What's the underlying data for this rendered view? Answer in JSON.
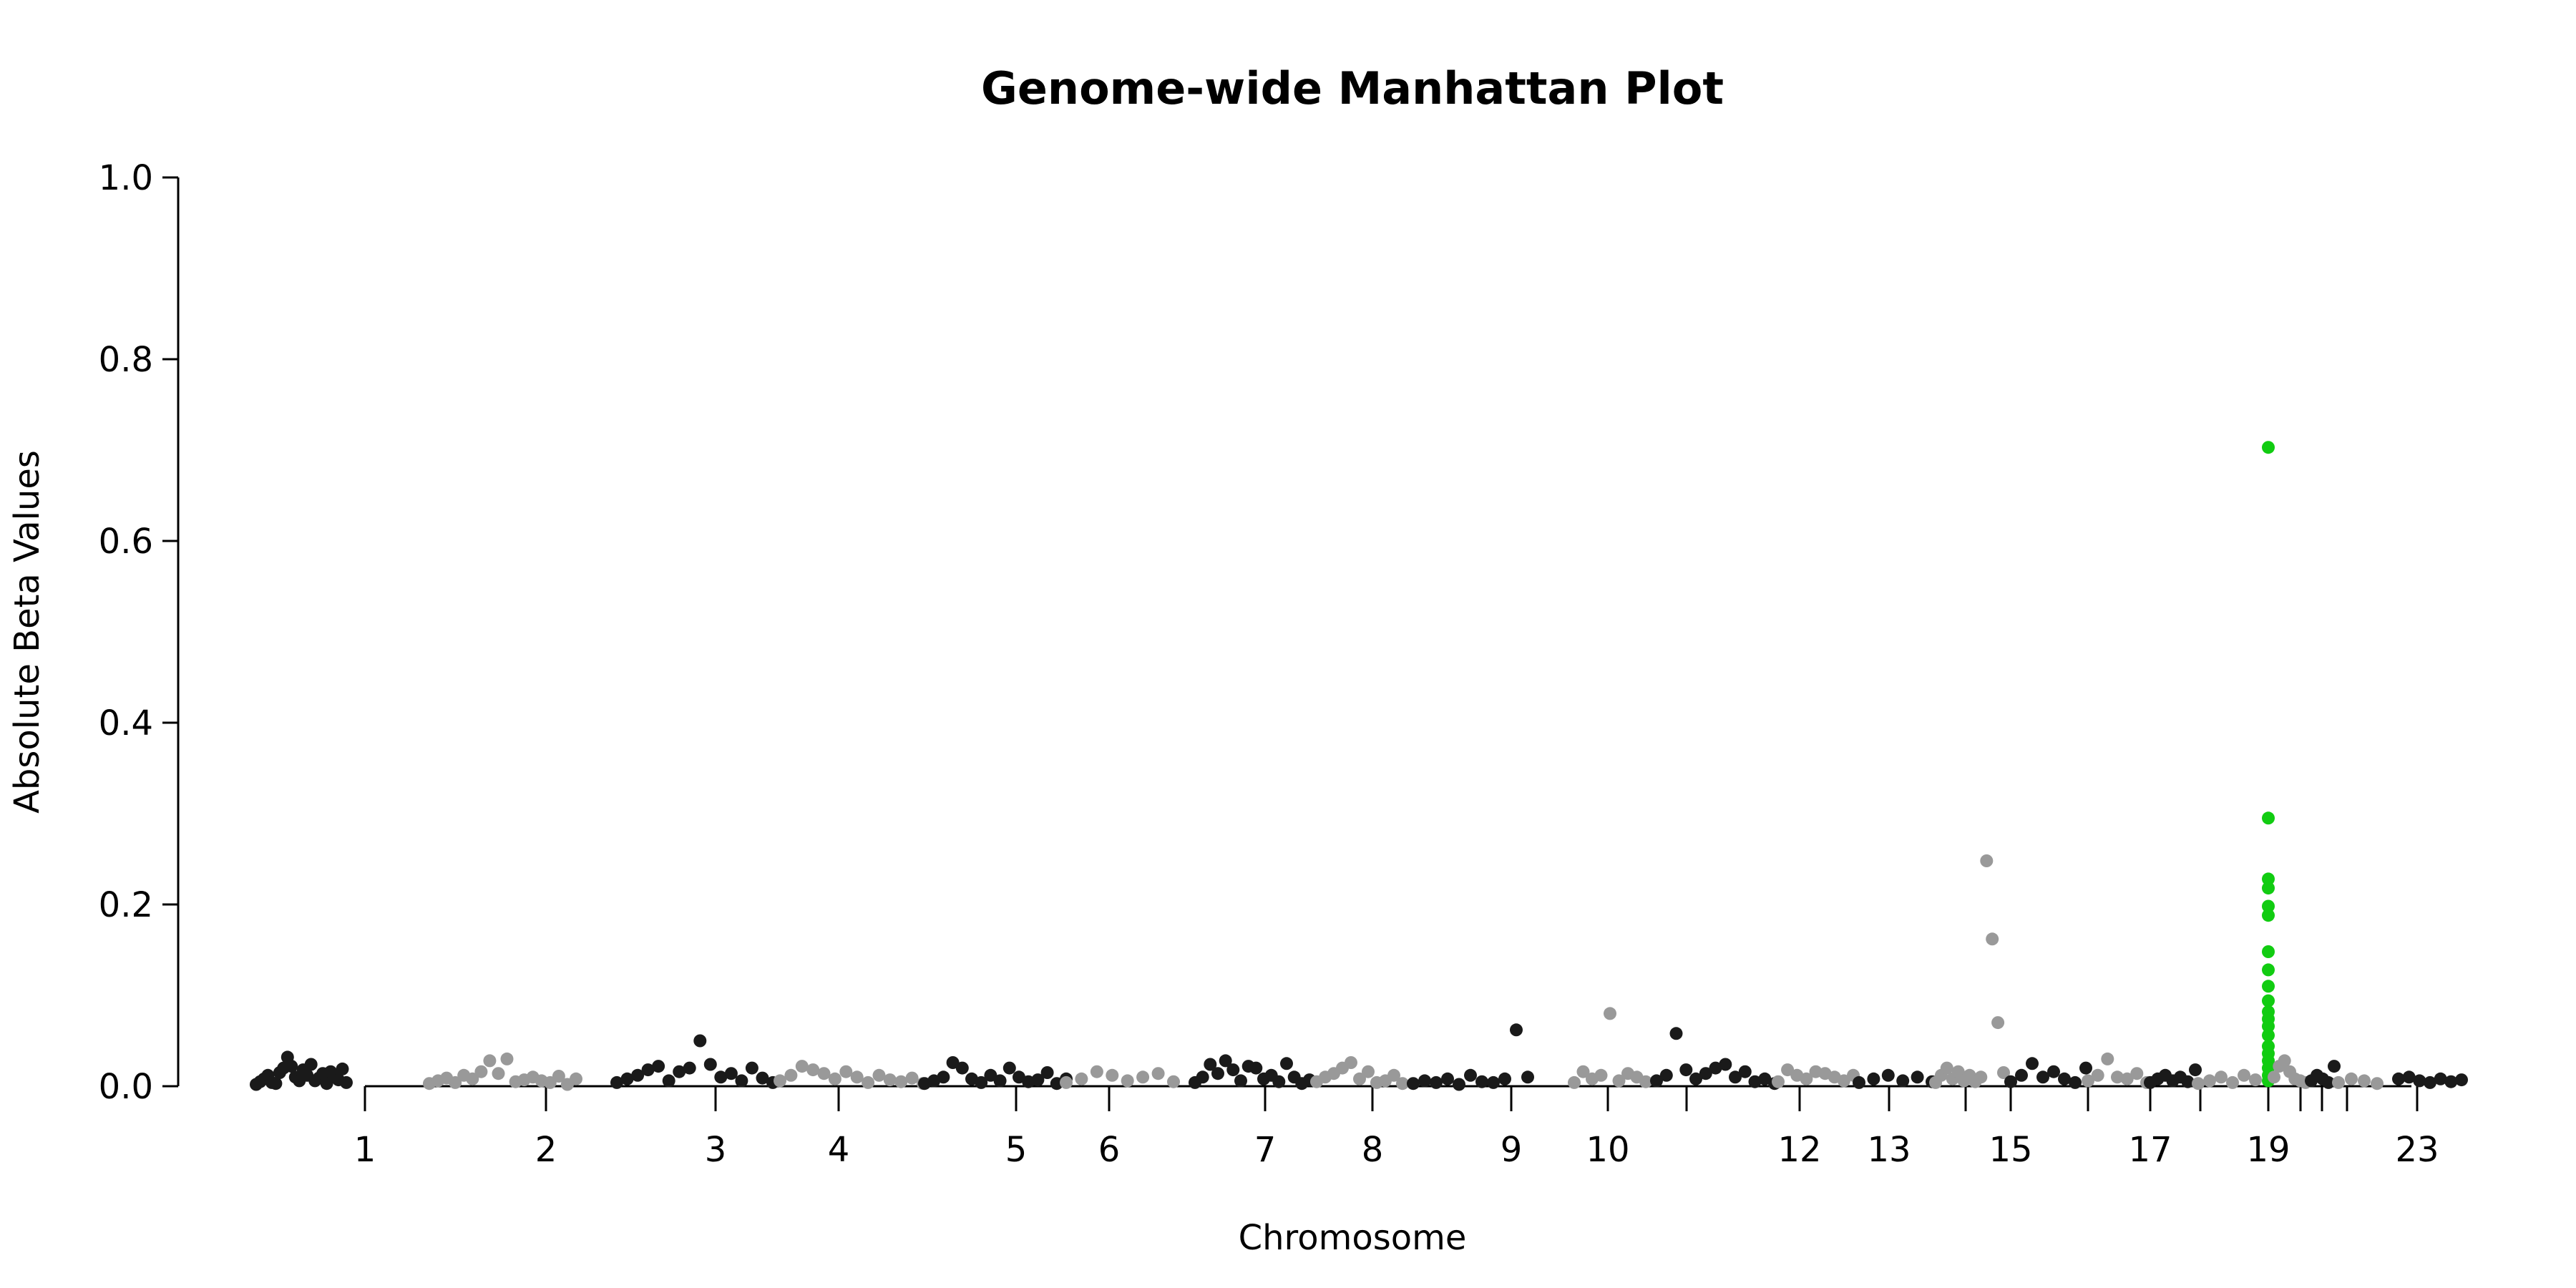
{
  "chart_data": {
    "type": "scatter",
    "title": "Genome-wide Manhattan Plot",
    "xlabel": "Chromosome",
    "ylabel": "Absolute Beta Values",
    "ylim": [
      0,
      1.0
    ],
    "y_ticks": [
      "0.0",
      "0.2",
      "0.4",
      "0.6",
      "0.8",
      "1.0"
    ],
    "x_tick_labels": [
      "1",
      "2",
      "3",
      "4",
      "5",
      "6",
      "7",
      "8",
      "9",
      "10",
      "",
      "12",
      "13",
      "",
      "15",
      "",
      "17",
      "",
      "19",
      "",
      "",
      "",
      "23"
    ],
    "grid": false,
    "legend": "none",
    "colors": {
      "odd": "#1a1a1a",
      "even": "#999999",
      "highlight": "#11cc11"
    },
    "highlight_chromosome": 19,
    "chromosomes": [
      {
        "chr": 1,
        "values": [
          0.002,
          0.005,
          0.008,
          0.012,
          0.004,
          0.003,
          0.015,
          0.02,
          0.032,
          0.022,
          0.01,
          0.006,
          0.018,
          0.012,
          0.024,
          0.006,
          0.009,
          0.014,
          0.003,
          0.016,
          0.011,
          0.007,
          0.019,
          0.004
        ]
      },
      {
        "chr": 2,
        "values": [
          0.003,
          0.006,
          0.009,
          0.004,
          0.012,
          0.008,
          0.016,
          0.028,
          0.014,
          0.03,
          0.005,
          0.007,
          0.01,
          0.006,
          0.004,
          0.011,
          0.002,
          0.008
        ]
      },
      {
        "chr": 3,
        "values": [
          0.004,
          0.008,
          0.012,
          0.018,
          0.022,
          0.006,
          0.016,
          0.02,
          0.05,
          0.024,
          0.01,
          0.014,
          0.006,
          0.02,
          0.009,
          0.004
        ]
      },
      {
        "chr": 4,
        "values": [
          0.006,
          0.012,
          0.022,
          0.018,
          0.014,
          0.008,
          0.016,
          0.01,
          0.004,
          0.012,
          0.007,
          0.005,
          0.009,
          0.003
        ]
      },
      {
        "chr": 5,
        "values": [
          0.003,
          0.006,
          0.01,
          0.026,
          0.02,
          0.008,
          0.004,
          0.012,
          0.006,
          0.02,
          0.01,
          0.005,
          0.007,
          0.015,
          0.003,
          0.008
        ]
      },
      {
        "chr": 6,
        "values": [
          0.004,
          0.008,
          0.016,
          0.012,
          0.006,
          0.01,
          0.014,
          0.005
        ]
      },
      {
        "chr": 7,
        "values": [
          0.004,
          0.01,
          0.024,
          0.014,
          0.028,
          0.018,
          0.006,
          0.022,
          0.02,
          0.008,
          0.012,
          0.005,
          0.025,
          0.01,
          0.003,
          0.007
        ]
      },
      {
        "chr": 8,
        "values": [
          0.005,
          0.01,
          0.014,
          0.02,
          0.026,
          0.008,
          0.016,
          0.004,
          0.006,
          0.012,
          0.003
        ]
      },
      {
        "chr": 9,
        "values": [
          0.003,
          0.006,
          0.004,
          0.008,
          0.002,
          0.012,
          0.005,
          0.004,
          0.008,
          0.062,
          0.01
        ]
      },
      {
        "chr": 10,
        "values": [
          0.004,
          0.016,
          0.008,
          0.012,
          0.08,
          0.006,
          0.014,
          0.01,
          0.005
        ]
      },
      {
        "chr": 11,
        "values": [
          0.006,
          0.012,
          0.058,
          0.018,
          0.008,
          0.014,
          0.02,
          0.024,
          0.01,
          0.016,
          0.005,
          0.008,
          0.003
        ]
      },
      {
        "chr": 12,
        "values": [
          0.005,
          0.018,
          0.012,
          0.008,
          0.016,
          0.014,
          0.01,
          0.006,
          0.012
        ]
      },
      {
        "chr": 13,
        "values": [
          0.004,
          0.008,
          0.012,
          0.006,
          0.01,
          0.005
        ]
      },
      {
        "chr": 14,
        "values": [
          0.004,
          0.012,
          0.02,
          0.008,
          0.016,
          0.006,
          0.012,
          0.005,
          0.01,
          0.248,
          0.162,
          0.07,
          0.015
        ]
      },
      {
        "chr": 15,
        "values": [
          0.005,
          0.012,
          0.025,
          0.01,
          0.016,
          0.008,
          0.004,
          0.02
        ]
      },
      {
        "chr": 16,
        "values": [
          0.006,
          0.012,
          0.03,
          0.01,
          0.008,
          0.014,
          0.004
        ]
      },
      {
        "chr": 17,
        "values": [
          0.004,
          0.008,
          0.012,
          0.006,
          0.01,
          0.005,
          0.018
        ]
      },
      {
        "chr": 18,
        "values": [
          0.003,
          0.006,
          0.01,
          0.004,
          0.012,
          0.007
        ]
      },
      {
        "chr": 19,
        "values": [
          0.703,
          0.295,
          0.228,
          0.218,
          0.198,
          0.188,
          0.148,
          0.128,
          0.11,
          0.094,
          0.082,
          0.074,
          0.066,
          0.056,
          0.044,
          0.036,
          0.028,
          0.02,
          0.012,
          0.006
        ]
      },
      {
        "chr": 20,
        "values": [
          0.01,
          0.022,
          0.028,
          0.016,
          0.008,
          0.006,
          0.004
        ]
      },
      {
        "chr": 21,
        "values": [
          0.006,
          0.012,
          0.008,
          0.004,
          0.022
        ]
      },
      {
        "chr": 22,
        "values": [
          0.004,
          0.008,
          0.006,
          0.003
        ]
      },
      {
        "chr": 23,
        "values": [
          0.008,
          0.01,
          0.006,
          0.004,
          0.008,
          0.005,
          0.007
        ]
      }
    ]
  }
}
